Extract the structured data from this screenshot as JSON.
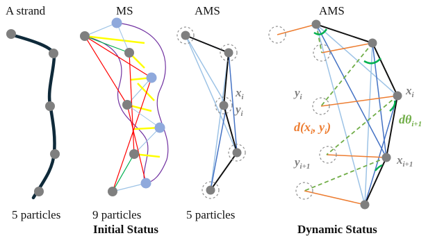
{
  "panels": {
    "strand": {
      "title": "A strand",
      "caption": "5 particles"
    },
    "ms": {
      "title": "MS",
      "caption": "9 particles"
    },
    "ams": {
      "title": "AMS",
      "caption": "5 particles"
    },
    "dynamic": {
      "title": "AMS"
    }
  },
  "group_labels": {
    "initial": "Initial Status",
    "dynamic": "Dynamic Status"
  },
  "math_labels": {
    "xi_static": "x",
    "xi_static_sub": "i",
    "yi_static": "y",
    "yi_static_sub": "i",
    "xi": "x",
    "xi_sub": "i",
    "yi": "y",
    "yi_sub": "i",
    "xi1": "x",
    "xi1_sub": "i+1",
    "yi1": "y",
    "yi1_sub": "i+1",
    "dist_text": "d(x",
    "dist_sub1": "i",
    "dist_mid": ", y",
    "dist_sub2": "i",
    "dist_close": ")",
    "dtheta_text": "dθ",
    "dtheta_sub": "i+1"
  },
  "colors": {
    "strand": "#0f2a3a",
    "particle": "#7f7f7f",
    "particle_ms": "#8fa9dc",
    "ghost": "#8a8a8a",
    "edge_black": "#111111",
    "edge_blue": "#4472c4",
    "edge_lightblue": "#9dc3e6",
    "edge_purple": "#7030a0",
    "edge_red": "#ff0000",
    "edge_yellow": "#ffff00",
    "edge_green": "#00b050",
    "edge_orange": "#ed7d31",
    "dashed_green": "#70ad47",
    "label_gray": "#7f7f7f"
  }
}
